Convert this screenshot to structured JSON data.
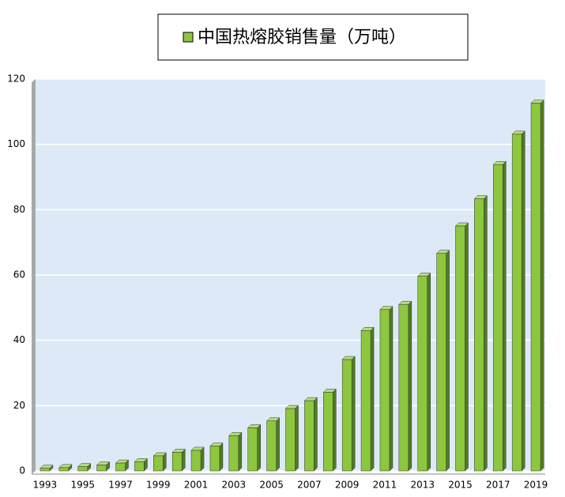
{
  "chart_data": {
    "type": "bar",
    "categories": [
      "1993",
      null,
      "1995",
      null,
      "1997",
      null,
      "1999",
      null,
      "2001",
      null,
      "2003",
      null,
      "2005",
      null,
      "2007",
      null,
      "2009",
      null,
      "2011",
      null,
      "2013",
      null,
      "2015",
      null,
      "2017",
      null,
      "2019"
    ],
    "series": [
      {
        "name": "中国热熔胶销售量（万吨）",
        "color": "#8dc63f",
        "values": [
          0.8,
          1.0,
          1.3,
          1.8,
          2.4,
          2.8,
          4.6,
          5.7,
          6.3,
          7.6,
          10.8,
          13.2,
          15.3,
          19.1,
          21.5,
          24.1,
          34.1,
          43.0,
          49.4,
          51.0,
          59.6,
          66.6,
          75.0,
          83.3,
          93.8,
          103.1,
          112.6
        ]
      }
    ],
    "ylim": [
      0,
      120
    ],
    "yticks": [
      0,
      20,
      40,
      60,
      80,
      100,
      120
    ],
    "grid": true,
    "legend": "top"
  }
}
